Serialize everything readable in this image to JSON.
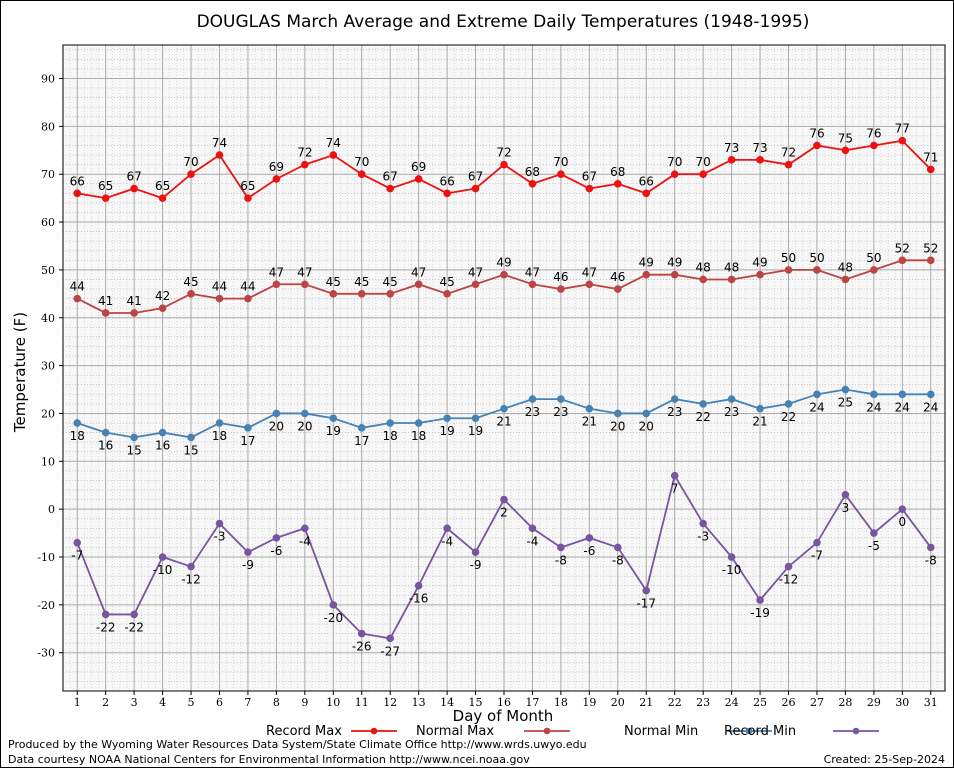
{
  "chart_data": {
    "type": "line",
    "title": "DOUGLAS March Average and Extreme Daily Temperatures (1948-1995)",
    "xlabel": "Day of Month",
    "ylabel": "Temperature (F)",
    "x": [
      1,
      2,
      3,
      4,
      5,
      6,
      7,
      8,
      9,
      10,
      11,
      12,
      13,
      14,
      15,
      16,
      17,
      18,
      19,
      20,
      21,
      22,
      23,
      24,
      25,
      26,
      27,
      28,
      29,
      30,
      31
    ],
    "xlim": [
      0.5,
      31.5
    ],
    "ylim": [
      -38,
      97
    ],
    "yticks": [
      -30,
      -20,
      -10,
      0,
      10,
      20,
      30,
      40,
      50,
      60,
      70,
      80,
      90
    ],
    "grid": true,
    "legend_position": "bottom",
    "series": [
      {
        "name": "Record Max",
        "color": "#ee1111",
        "label_position": "above",
        "values": [
          66,
          65,
          67,
          65,
          70,
          74,
          65,
          69,
          72,
          74,
          70,
          67,
          69,
          66,
          67,
          72,
          68,
          70,
          67,
          68,
          66,
          70,
          70,
          73,
          73,
          72,
          76,
          75,
          76,
          77,
          71
        ]
      },
      {
        "name": "Normal Max",
        "color": "#bb4444",
        "label_position": "above",
        "values": [
          44,
          41,
          41,
          42,
          45,
          44,
          44,
          47,
          47,
          45,
          45,
          45,
          47,
          45,
          47,
          49,
          47,
          46,
          47,
          46,
          49,
          49,
          48,
          48,
          49,
          50,
          50,
          48,
          50,
          52,
          52
        ]
      },
      {
        "name": "Normal Min",
        "color": "#4682b4",
        "label_position": "below",
        "values": [
          18,
          16,
          15,
          16,
          15,
          18,
          17,
          20,
          20,
          19,
          17,
          18,
          18,
          19,
          19,
          21,
          23,
          23,
          21,
          20,
          20,
          23,
          22,
          23,
          21,
          22,
          24,
          25,
          24,
          24,
          24
        ]
      },
      {
        "name": "Record Min",
        "color": "#7755a0",
        "label_position": "below",
        "values": [
          -7,
          -22,
          -22,
          -10,
          -12,
          -3,
          -9,
          -6,
          -4,
          -20,
          -26,
          -27,
          -16,
          -4,
          -9,
          2,
          -4,
          -8,
          -6,
          -8,
          -17,
          7,
          -3,
          -10,
          -19,
          -12,
          -7,
          3,
          -5,
          0,
          -8
        ]
      }
    ]
  },
  "footer": {
    "produced_by": "Produced by the Wyoming Water Resources Data System/State Climate Office http://www.wrds.uwyo.edu",
    "courtesy": "Data courtesy NOAA National Centers for Environmental Information http://www.ncei.noaa.gov",
    "created": "Created:  25-Sep-2024"
  }
}
